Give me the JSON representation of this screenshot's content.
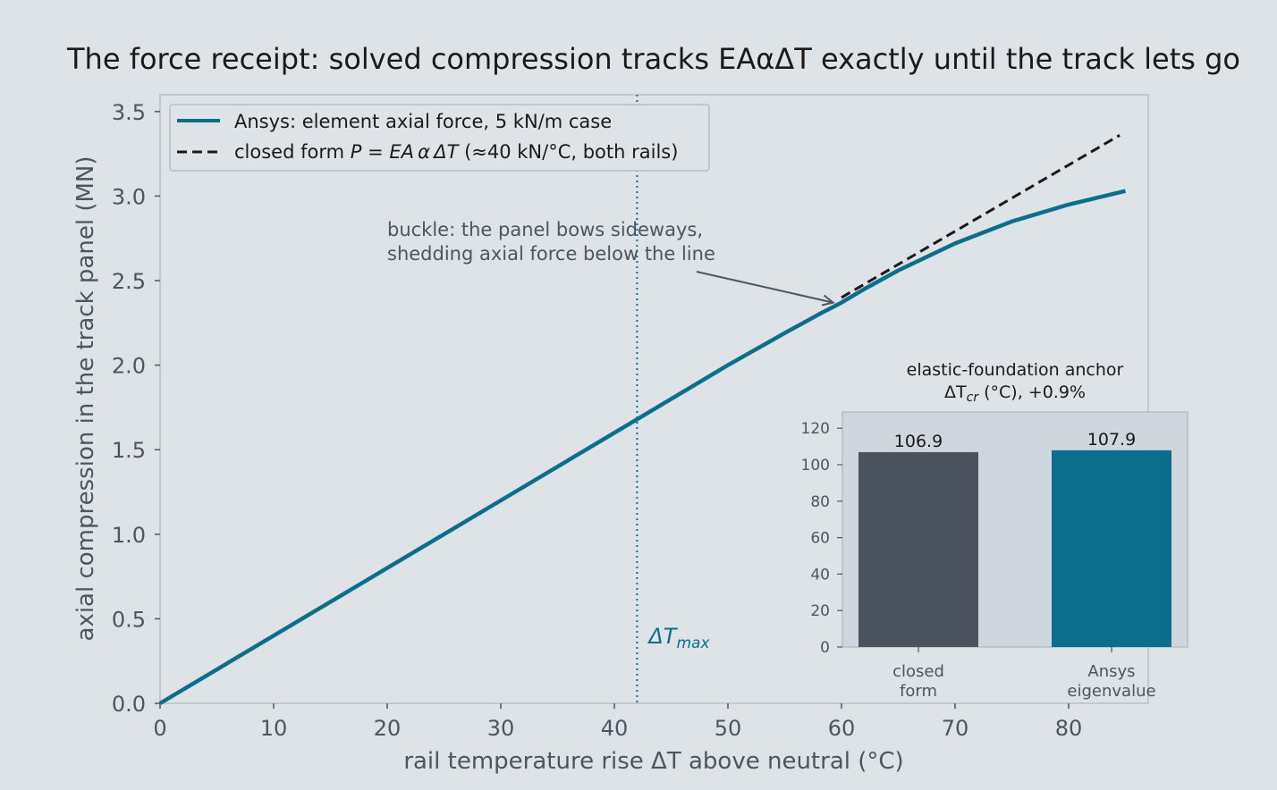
{
  "chart_data": [
    {
      "type": "line",
      "title": "The force receipt: solved compression tracks EAαΔT exactly until the track lets go",
      "xlabel": "rail temperature rise ΔT above neutral (°C)",
      "ylabel": "axial compression in the track panel (MN)",
      "xlim": [
        0,
        87
      ],
      "ylim": [
        0,
        3.6
      ],
      "x_ticks": [
        0,
        10,
        20,
        30,
        40,
        50,
        60,
        70,
        80
      ],
      "y_ticks": [
        0.0,
        0.5,
        1.0,
        1.5,
        2.0,
        2.5,
        3.0,
        3.5
      ],
      "y_tick_labels": [
        "0.0",
        "0.5",
        "1.0",
        "1.5",
        "2.0",
        "2.5",
        "3.0",
        "3.5"
      ],
      "grid": false,
      "legend_position": "top-left",
      "series": [
        {
          "name": "Ansys: element axial force, 5 kN/m case",
          "color": "#0b6e8b",
          "style": "solid",
          "x": [
            0,
            10,
            20,
            30,
            40,
            50,
            55,
            58,
            60,
            62,
            65,
            70,
            75,
            80,
            85
          ],
          "y": [
            0,
            0.4,
            0.8,
            1.2,
            1.6,
            2.0,
            2.19,
            2.3,
            2.37,
            2.45,
            2.56,
            2.72,
            2.85,
            2.95,
            3.03
          ]
        },
        {
          "name_parts": [
            "closed form ",
            "P = EA α ΔT",
            " (≈40 kN/°C, both rails)"
          ],
          "color": "#1a1a1a",
          "style": "dashed",
          "x": [
            60,
            84.5
          ],
          "y": [
            2.4,
            3.36
          ]
        }
      ],
      "vertical_line": {
        "x": 42,
        "label_main": "ΔT",
        "label_sub": "max",
        "color": "#0b6e8b"
      },
      "annotation": {
        "lines": [
          "buckle: the panel bows sideways,",
          "shedding axial force below the line"
        ],
        "point": [
          59.5,
          2.37
        ]
      }
    },
    {
      "type": "bar",
      "title_line1": "elastic-foundation anchor",
      "title_line2_main": "ΔT",
      "title_line2_sub": "cr",
      "title_line2_rest": " (°C), +0.9%",
      "categories": [
        [
          "closed",
          "form"
        ],
        [
          "Ansys",
          "eigenvalue"
        ]
      ],
      "values": [
        106.9,
        107.9
      ],
      "value_labels": [
        "106.9",
        "107.9"
      ],
      "colors": [
        "#4a525d",
        "#0b6e8b"
      ],
      "ylim": [
        0,
        130
      ],
      "y_ticks": [
        0,
        20,
        40,
        60,
        80,
        100,
        120
      ]
    }
  ]
}
